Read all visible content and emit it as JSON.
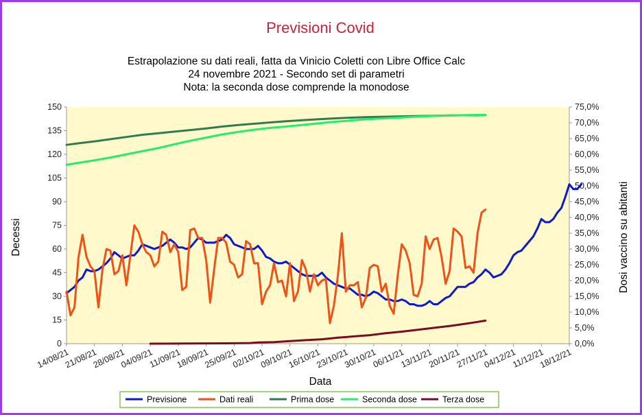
{
  "chart_data": {
    "type": "line",
    "title": "Previsioni Covid",
    "subtitle": [
      "Estrapolazione su dati reali, fatta da Vinicio Coletti con Libre Office Calc",
      "24 novembre 2021 - Secondo set di parametri",
      "Nota: la seconda dose comprende la monodose"
    ],
    "xlabel": "Data",
    "ylabel": "Decessi",
    "y2label": "Dosi vaccino su abitanti",
    "x_start": "14/08/21",
    "x_end": "18/12/21",
    "x_ticks": [
      "14/08/21",
      "21/08/21",
      "28/08/21",
      "04/09/21",
      "11/09/21",
      "18/09/21",
      "25/09/21",
      "02/10/21",
      "09/10/21",
      "16/10/21",
      "23/10/21",
      "30/10/21",
      "06/11/21",
      "13/11/21",
      "20/11/21",
      "27/11/21",
      "04/12/21",
      "11/12/21",
      "18/12/21"
    ],
    "ylim": [
      0,
      150
    ],
    "y_ticks": [
      "0",
      "15",
      "30",
      "45",
      "60",
      "75",
      "90",
      "105",
      "120",
      "135",
      "150"
    ],
    "y2lim": [
      0,
      75
    ],
    "y2_ticks": [
      "0,0%",
      "5,0%",
      "10,0%",
      "15,0%",
      "20,0%",
      "25,0%",
      "30,0%",
      "35,0%",
      "40,0%",
      "45,0%",
      "50,0%",
      "55,0%",
      "60,0%",
      "65,0%",
      "70,0%",
      "75,0%"
    ],
    "grid": false,
    "legend_position": "bottom",
    "plot_background": "#fff9cc",
    "series": [
      {
        "name": "Previsione",
        "axis": "left",
        "color": "#0a1acc",
        "points": [
          [
            0,
            32
          ],
          [
            2,
            36
          ],
          [
            3,
            40
          ],
          [
            4,
            42
          ],
          [
            5,
            47
          ],
          [
            6,
            46
          ],
          [
            7,
            46
          ],
          [
            8,
            47
          ],
          [
            9,
            49
          ],
          [
            10,
            51
          ],
          [
            11,
            54
          ],
          [
            12,
            58
          ],
          [
            13,
            56
          ],
          [
            14,
            54
          ],
          [
            15,
            55
          ],
          [
            16,
            56
          ],
          [
            17,
            56
          ],
          [
            18,
            59
          ],
          [
            19,
            63
          ],
          [
            20,
            62
          ],
          [
            21,
            61
          ],
          [
            22,
            60
          ],
          [
            23,
            61
          ],
          [
            24,
            62
          ],
          [
            25,
            64
          ],
          [
            26,
            66
          ],
          [
            27,
            64
          ],
          [
            28,
            61
          ],
          [
            29,
            61
          ],
          [
            30,
            60
          ],
          [
            31,
            61
          ],
          [
            32,
            64
          ],
          [
            33,
            67
          ],
          [
            34,
            66
          ],
          [
            35,
            64
          ],
          [
            36,
            64
          ],
          [
            37,
            64
          ],
          [
            38,
            65
          ],
          [
            39,
            66
          ],
          [
            40,
            69
          ],
          [
            41,
            67
          ],
          [
            42,
            63
          ],
          [
            43,
            62
          ],
          [
            44,
            61
          ],
          [
            45,
            60
          ],
          [
            46,
            60
          ],
          [
            47,
            60
          ],
          [
            48,
            62
          ],
          [
            49,
            59
          ],
          [
            50,
            55
          ],
          [
            51,
            54
          ],
          [
            52,
            52
          ],
          [
            53,
            51
          ],
          [
            54,
            51
          ],
          [
            55,
            52
          ],
          [
            56,
            50
          ],
          [
            57,
            48
          ],
          [
            58,
            46
          ],
          [
            59,
            44
          ],
          [
            60,
            43
          ],
          [
            61,
            43
          ],
          [
            62,
            43
          ],
          [
            63,
            43
          ],
          [
            64,
            45
          ],
          [
            65,
            42
          ],
          [
            66,
            40
          ],
          [
            67,
            38
          ],
          [
            68,
            37
          ],
          [
            69,
            36
          ],
          [
            70,
            35
          ],
          [
            71,
            35
          ],
          [
            72,
            33
          ],
          [
            73,
            31
          ],
          [
            74,
            31
          ],
          [
            75,
            30
          ],
          [
            76,
            31
          ],
          [
            77,
            33
          ],
          [
            78,
            32
          ],
          [
            79,
            30
          ],
          [
            80,
            28
          ],
          [
            81,
            28
          ],
          [
            82,
            27
          ],
          [
            83,
            27
          ],
          [
            84,
            28
          ],
          [
            85,
            27
          ],
          [
            86,
            25
          ],
          [
            87,
            25
          ],
          [
            88,
            24
          ],
          [
            89,
            24
          ],
          [
            90,
            25
          ],
          [
            91,
            27
          ],
          [
            92,
            25
          ],
          [
            93,
            25
          ],
          [
            94,
            27
          ],
          [
            95,
            29
          ],
          [
            96,
            30
          ],
          [
            97,
            33
          ],
          [
            98,
            36
          ],
          [
            99,
            36
          ],
          [
            100,
            36
          ],
          [
            101,
            38
          ],
          [
            102,
            39
          ],
          [
            103,
            42
          ],
          [
            104,
            44
          ],
          [
            105,
            47
          ],
          [
            106,
            45
          ],
          [
            107,
            42
          ],
          [
            108,
            43
          ],
          [
            109,
            44
          ],
          [
            110,
            47
          ],
          [
            111,
            51
          ],
          [
            112,
            56
          ],
          [
            113,
            58
          ],
          [
            114,
            59
          ],
          [
            115,
            62
          ],
          [
            116,
            65
          ],
          [
            117,
            68
          ],
          [
            118,
            73
          ],
          [
            119,
            79
          ],
          [
            120,
            77
          ],
          [
            121,
            77
          ],
          [
            122,
            79
          ],
          [
            123,
            83
          ],
          [
            124,
            86
          ],
          [
            125,
            93
          ],
          [
            126,
            101
          ],
          [
            127,
            98
          ],
          [
            128,
            98
          ],
          [
            129,
            101
          ]
        ]
      },
      {
        "name": "Dati reali",
        "axis": "left",
        "color": "#ee5216",
        "points": [
          [
            0,
            33
          ],
          [
            1,
            18
          ],
          [
            2,
            23
          ],
          [
            3,
            55
          ],
          [
            4,
            69
          ],
          [
            5,
            55
          ],
          [
            6,
            49
          ],
          [
            7,
            46
          ],
          [
            8,
            23
          ],
          [
            9,
            47
          ],
          [
            10,
            60
          ],
          [
            11,
            59
          ],
          [
            12,
            44
          ],
          [
            13,
            46
          ],
          [
            14,
            56
          ],
          [
            15,
            37
          ],
          [
            16,
            56
          ],
          [
            17,
            75
          ],
          [
            18,
            71
          ],
          [
            19,
            63
          ],
          [
            20,
            58
          ],
          [
            21,
            56
          ],
          [
            22,
            49
          ],
          [
            23,
            52
          ],
          [
            24,
            71
          ],
          [
            25,
            69
          ],
          [
            26,
            58
          ],
          [
            27,
            63
          ],
          [
            28,
            58
          ],
          [
            29,
            34
          ],
          [
            30,
            36
          ],
          [
            31,
            72
          ],
          [
            32,
            73
          ],
          [
            33,
            67
          ],
          [
            34,
            67
          ],
          [
            35,
            53
          ],
          [
            36,
            26
          ],
          [
            37,
            47
          ],
          [
            38,
            67
          ],
          [
            39,
            67
          ],
          [
            40,
            64
          ],
          [
            41,
            52
          ],
          [
            42,
            50
          ],
          [
            43,
            42
          ],
          [
            44,
            44
          ],
          [
            45,
            65
          ],
          [
            46,
            63
          ],
          [
            47,
            51
          ],
          [
            48,
            51
          ],
          [
            49,
            25
          ],
          [
            50,
            33
          ],
          [
            51,
            37
          ],
          [
            52,
            51
          ],
          [
            53,
            39
          ],
          [
            54,
            40
          ],
          [
            55,
            30
          ],
          [
            56,
            51
          ],
          [
            57,
            27
          ],
          [
            58,
            33
          ],
          [
            59,
            53
          ],
          [
            60,
            47
          ],
          [
            61,
            33
          ],
          [
            62,
            44
          ],
          [
            63,
            37
          ],
          [
            64,
            40
          ],
          [
            65,
            41
          ],
          [
            66,
            13
          ],
          [
            67,
            24
          ],
          [
            68,
            43
          ],
          [
            69,
            70
          ],
          [
            70,
            33
          ],
          [
            71,
            37
          ],
          [
            72,
            37
          ],
          [
            73,
            39
          ],
          [
            74,
            23
          ],
          [
            75,
            29
          ],
          [
            76,
            48
          ],
          [
            77,
            50
          ],
          [
            78,
            49
          ],
          [
            79,
            33
          ],
          [
            80,
            38
          ],
          [
            81,
            24
          ],
          [
            82,
            19
          ],
          [
            83,
            43
          ],
          [
            84,
            63
          ],
          [
            85,
            59
          ],
          [
            86,
            51
          ],
          [
            87,
            31
          ],
          [
            88,
            30
          ],
          [
            89,
            38
          ],
          [
            90,
            68
          ],
          [
            91,
            60
          ],
          [
            92,
            66
          ],
          [
            93,
            67
          ],
          [
            94,
            55
          ],
          [
            95,
            38
          ],
          [
            96,
            46
          ],
          [
            97,
            73
          ],
          [
            98,
            71
          ],
          [
            99,
            68
          ],
          [
            100,
            48
          ],
          [
            101,
            49
          ],
          [
            102,
            45
          ],
          [
            103,
            70
          ],
          [
            104,
            83
          ],
          [
            105,
            85
          ]
        ]
      },
      {
        "name": "Prima dose",
        "axis": "right",
        "color": "#2e7d4f",
        "points": [
          [
            0,
            63.0
          ],
          [
            3,
            63.5
          ],
          [
            7,
            64.1
          ],
          [
            11,
            64.8
          ],
          [
            15,
            65.5
          ],
          [
            19,
            66.2
          ],
          [
            23,
            66.7
          ],
          [
            27,
            67.2
          ],
          [
            31,
            67.7
          ],
          [
            35,
            68.2
          ],
          [
            39,
            68.8
          ],
          [
            43,
            69.3
          ],
          [
            47,
            69.7
          ],
          [
            51,
            70.1
          ],
          [
            55,
            70.5
          ],
          [
            59,
            70.8
          ],
          [
            63,
            71.1
          ],
          [
            67,
            71.4
          ],
          [
            71,
            71.6
          ],
          [
            75,
            71.8
          ],
          [
            79,
            71.9
          ],
          [
            83,
            72.0
          ],
          [
            87,
            72.1
          ],
          [
            91,
            72.2
          ],
          [
            95,
            72.3
          ],
          [
            99,
            72.4
          ],
          [
            103,
            72.4
          ],
          [
            105,
            72.5
          ]
        ]
      },
      {
        "name": "Seconda dose",
        "axis": "right",
        "color": "#21ee6a",
        "points": [
          [
            0,
            56.7
          ],
          [
            3,
            57.3
          ],
          [
            7,
            58.1
          ],
          [
            11,
            59.0
          ],
          [
            15,
            60.0
          ],
          [
            19,
            61.0
          ],
          [
            23,
            62.0
          ],
          [
            27,
            63.2
          ],
          [
            31,
            64.3
          ],
          [
            35,
            65.3
          ],
          [
            39,
            66.3
          ],
          [
            43,
            67.1
          ],
          [
            47,
            67.8
          ],
          [
            51,
            68.4
          ],
          [
            55,
            68.8
          ],
          [
            59,
            69.3
          ],
          [
            63,
            69.8
          ],
          [
            67,
            70.3
          ],
          [
            71,
            70.7
          ],
          [
            75,
            71.1
          ],
          [
            79,
            71.4
          ],
          [
            83,
            71.6
          ],
          [
            87,
            71.9
          ],
          [
            91,
            72.1
          ],
          [
            95,
            72.3
          ],
          [
            99,
            72.4
          ],
          [
            103,
            72.5
          ],
          [
            105,
            72.5
          ]
        ]
      },
      {
        "name": "Terza dose",
        "axis": "right",
        "color": "#7b0a25",
        "points": [
          [
            21,
            0.0
          ],
          [
            30,
            0.05
          ],
          [
            40,
            0.1
          ],
          [
            46,
            0.2
          ],
          [
            48,
            0.4
          ],
          [
            52,
            0.5
          ],
          [
            56,
            0.8
          ],
          [
            60,
            1.1
          ],
          [
            64,
            1.4
          ],
          [
            68,
            1.9
          ],
          [
            72,
            2.3
          ],
          [
            76,
            2.7
          ],
          [
            80,
            3.3
          ],
          [
            84,
            3.8
          ],
          [
            88,
            4.4
          ],
          [
            92,
            5.0
          ],
          [
            96,
            5.6
          ],
          [
            100,
            6.3
          ],
          [
            103,
            6.9
          ],
          [
            105,
            7.3
          ]
        ]
      }
    ]
  }
}
